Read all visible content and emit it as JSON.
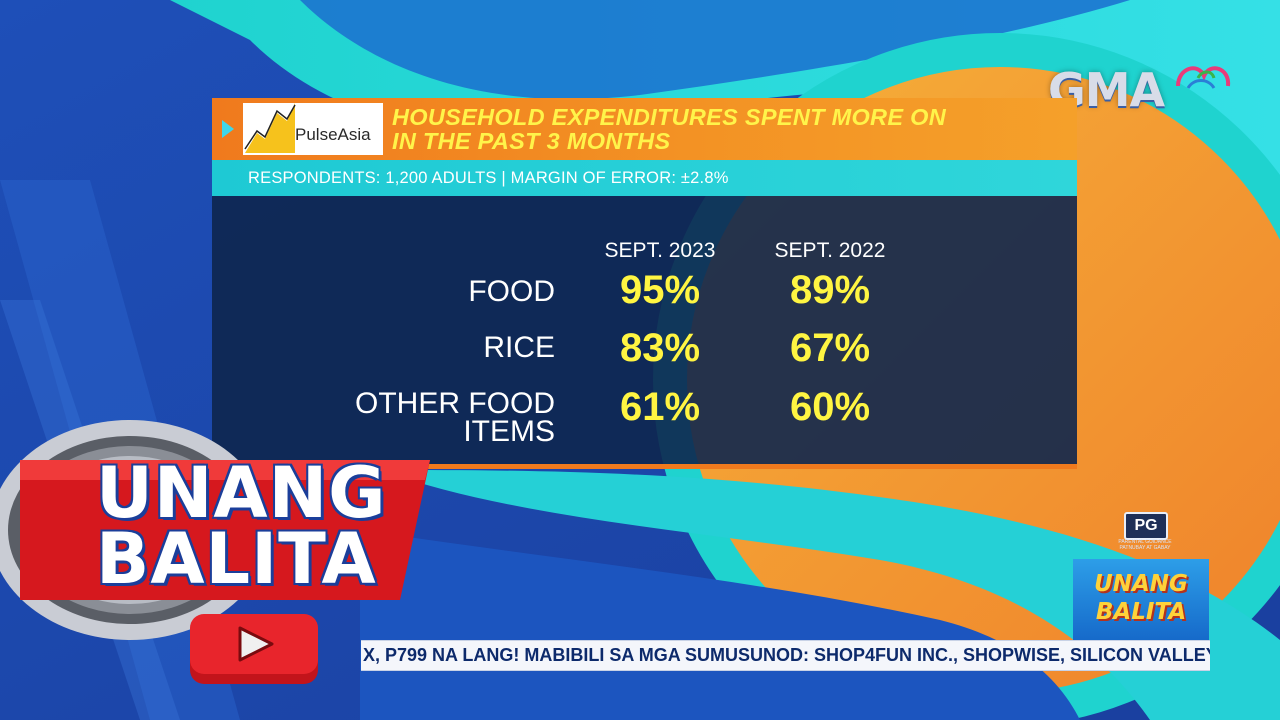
{
  "broadcast": {
    "network_logo": "GMA",
    "program_title_line1": "UNANG",
    "program_title_line2": "BALITA",
    "rating": "PG",
    "rating_caption": "PARENTAL GUIDANCE PATNUBAY AT GABAY"
  },
  "panel": {
    "source_logo_text": "PulseAsia",
    "title_line1": "HOUSEHOLD EXPENDITURES SPENT MORE ON",
    "title_line2": "IN THE PAST 3 MONTHS",
    "subtitle": "RESPONDENTS: 1,200 ADULTS | MARGIN OF ERROR: ±2.8%",
    "columns": [
      "SEPT. 2023",
      "SEPT. 2022"
    ],
    "rows": [
      {
        "label_line1": "FOOD",
        "label_line2": "",
        "values": [
          "95%",
          "89%"
        ]
      },
      {
        "label_line1": "RICE",
        "label_line2": "",
        "values": [
          "83%",
          "67%"
        ]
      },
      {
        "label_line1": "OTHER FOOD",
        "label_line2": "ITEMS",
        "values": [
          "61%",
          "60%"
        ]
      }
    ]
  },
  "ticker": {
    "text": "X, P799 NA LANG!  MABIBILI SA MGA SUMUSUNOD: SHOP4FUN INC., SHOPWISE, SILICON VALLEY"
  },
  "colors": {
    "header_orange": "#f07a1d",
    "subheader_cyan": "#1ec9d4",
    "value_yellow": "#fff542",
    "panel_navy": "#0e264e"
  }
}
